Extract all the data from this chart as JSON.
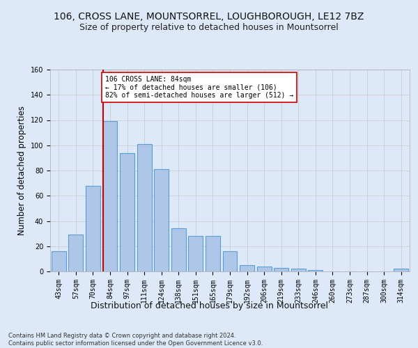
{
  "title_line1": "106, CROSS LANE, MOUNTSORREL, LOUGHBOROUGH, LE12 7BZ",
  "title_line2": "Size of property relative to detached houses in Mountsorrel",
  "xlabel": "Distribution of detached houses by size in Mountsorrel",
  "ylabel": "Number of detached properties",
  "footer_line1": "Contains HM Land Registry data © Crown copyright and database right 2024.",
  "footer_line2": "Contains public sector information licensed under the Open Government Licence v3.0.",
  "categories": [
    "43sqm",
    "57sqm",
    "70sqm",
    "84sqm",
    "97sqm",
    "111sqm",
    "124sqm",
    "138sqm",
    "151sqm",
    "165sqm",
    "179sqm",
    "192sqm",
    "206sqm",
    "219sqm",
    "233sqm",
    "246sqm",
    "260sqm",
    "273sqm",
    "287sqm",
    "300sqm",
    "314sqm"
  ],
  "values": [
    16,
    29,
    68,
    119,
    94,
    101,
    81,
    34,
    28,
    28,
    16,
    5,
    4,
    3,
    2,
    1,
    0,
    0,
    0,
    0,
    2
  ],
  "bar_color": "#aec6e8",
  "bar_edge_color": "#5a9fd4",
  "vline_index": 3,
  "vline_color": "#cc0000",
  "annotation_text": "106 CROSS LANE: 84sqm\n← 17% of detached houses are smaller (106)\n82% of semi-detached houses are larger (512) →",
  "annotation_box_color": "#ffffff",
  "annotation_box_edge": "#cc0000",
  "ylim": [
    0,
    160
  ],
  "yticks": [
    0,
    20,
    40,
    60,
    80,
    100,
    120,
    140,
    160
  ],
  "grid_color": "#cccccc",
  "background_color": "#dde8f8",
  "title_fontsize": 10,
  "subtitle_fontsize": 9,
  "tick_fontsize": 7,
  "ylabel_fontsize": 8.5,
  "xlabel_fontsize": 9
}
